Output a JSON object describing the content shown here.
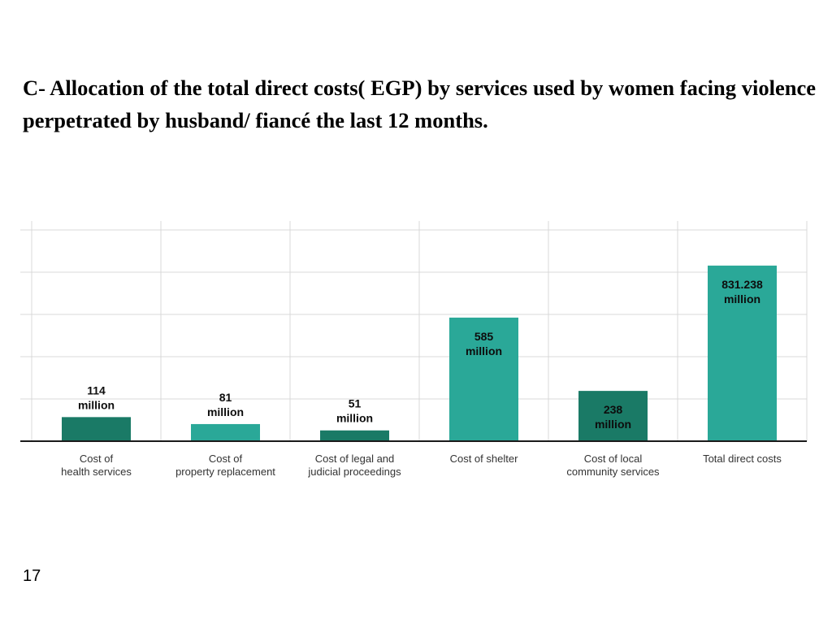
{
  "slide": {
    "title": "C- Allocation of the total direct costs( EGP) by services used by women facing violence perpetrated by husband/ fiancé  the last 12 months.",
    "page_number": "17"
  },
  "chart_data": {
    "type": "bar",
    "title": "",
    "xlabel": "",
    "ylabel": "",
    "ylim": [
      0,
      1000
    ],
    "grid": true,
    "categories": [
      [
        "Cost of",
        "health services"
      ],
      [
        "Cost of",
        "property replacement"
      ],
      [
        "Cost of  legal and",
        "judicial proceedings"
      ],
      [
        "Cost of shelter"
      ],
      [
        "Cost of local",
        "community services"
      ],
      [
        "Total direct costs"
      ]
    ],
    "values": [
      114,
      81,
      51,
      585,
      238,
      831.238
    ],
    "data_labels": [
      [
        "114",
        "million"
      ],
      [
        "81",
        "million"
      ],
      [
        "51",
        "million"
      ],
      [
        "585",
        "million"
      ],
      [
        "238",
        "million"
      ],
      [
        "831.238",
        "million"
      ]
    ],
    "colors": {
      "dark": "#1a7a66",
      "light": "#2aa898",
      "grid": "#d8d8d8",
      "axis": "#1a1a1a",
      "label_dark": "#0d0d0d"
    },
    "bar_color_keys": [
      "dark",
      "light",
      "dark",
      "light",
      "dark",
      "light"
    ]
  }
}
